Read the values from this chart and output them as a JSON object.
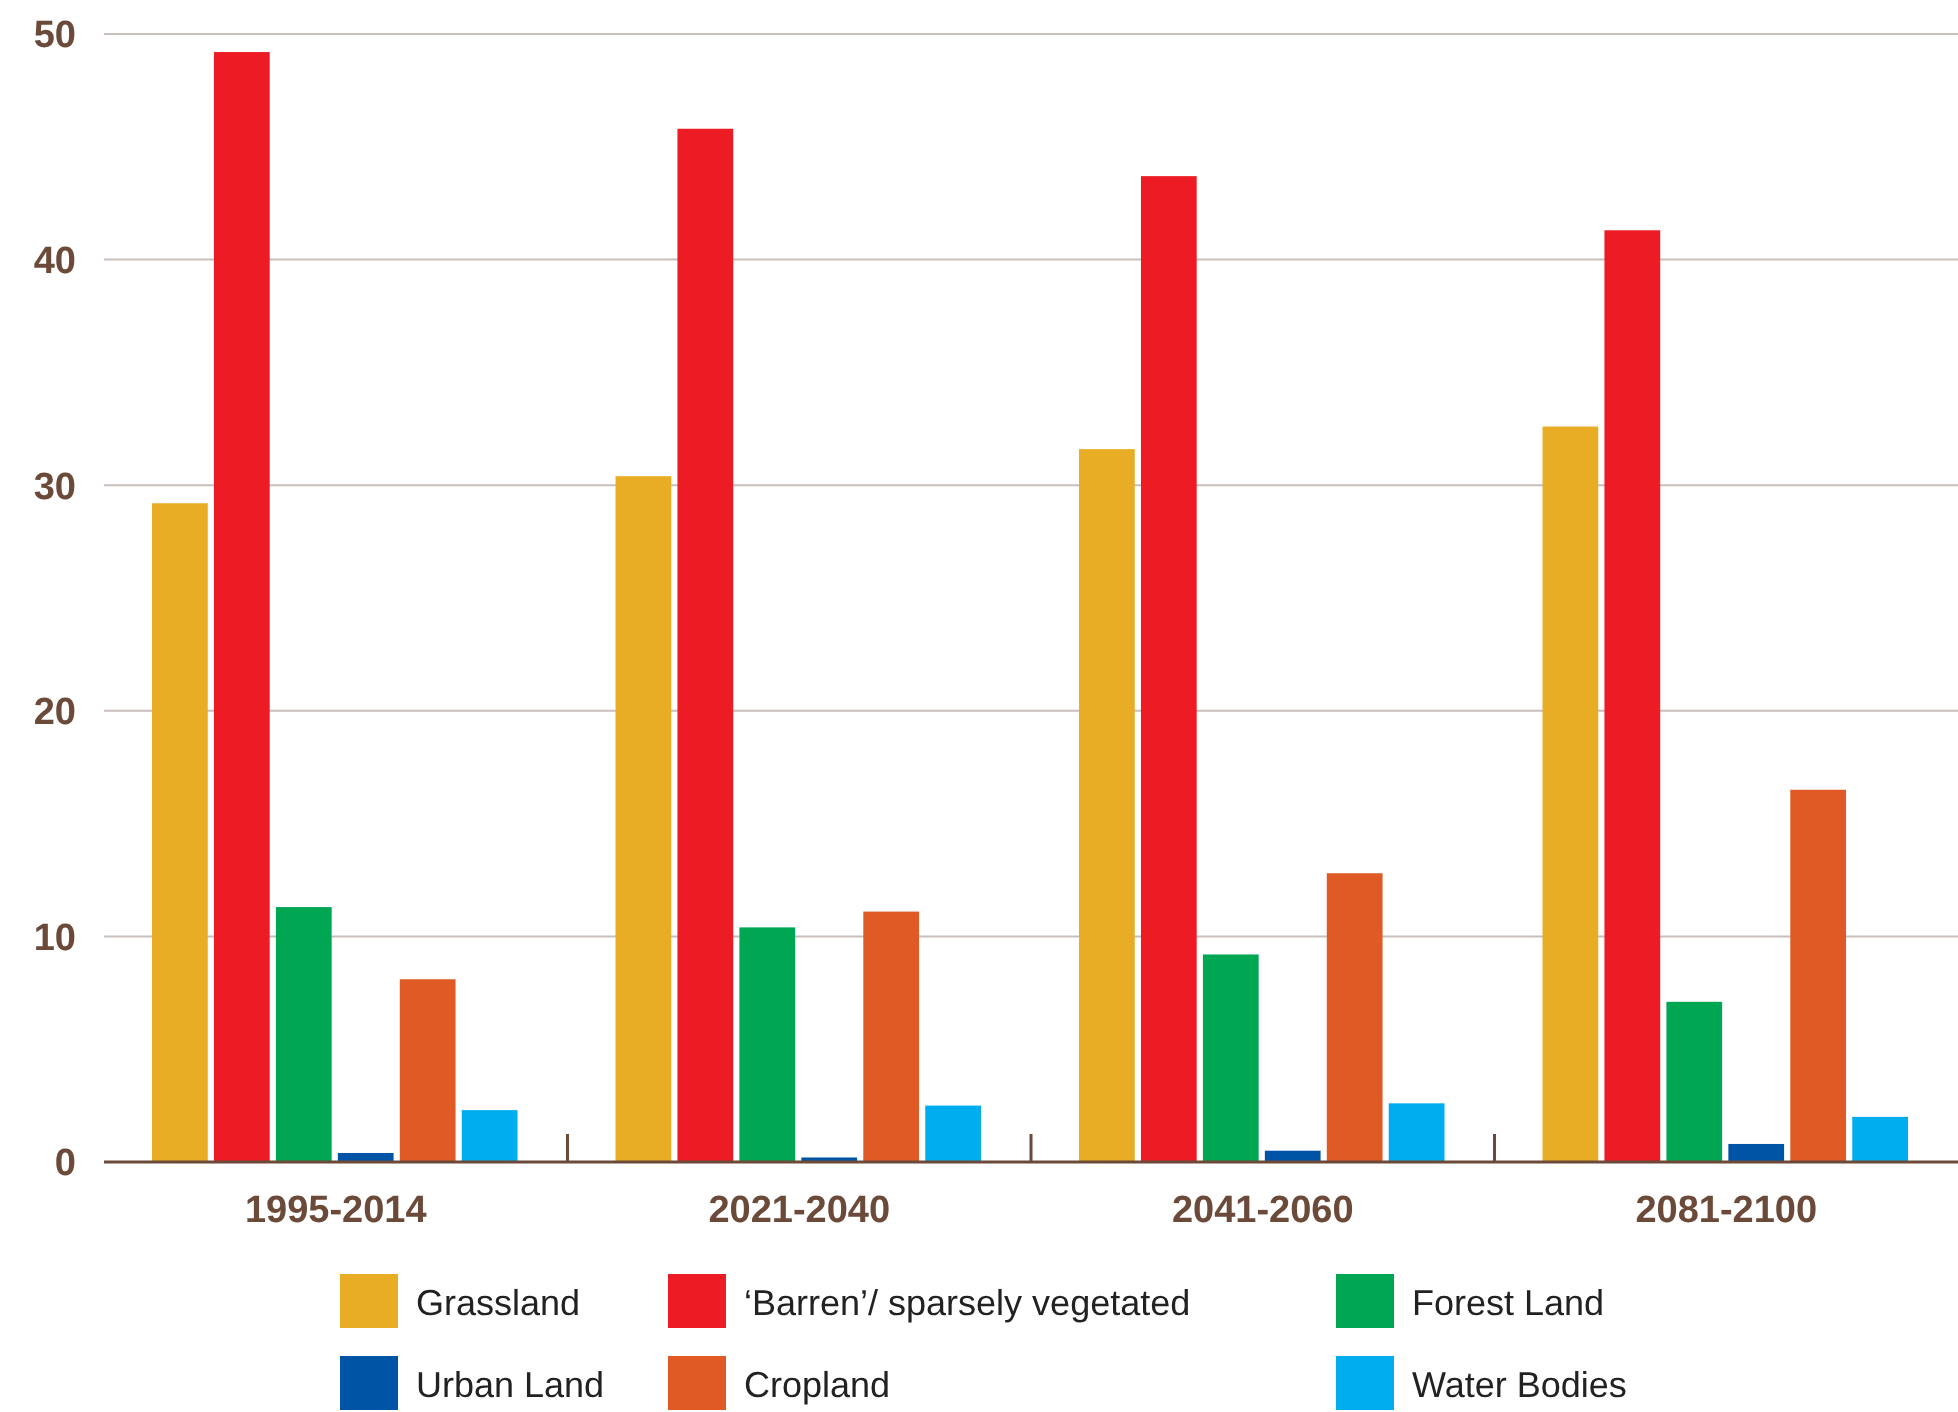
{
  "chart_data": {
    "type": "bar",
    "categories": [
      "1995-2014",
      "2021-2040",
      "2041-2060",
      "2081-2100"
    ],
    "series": [
      {
        "name": "Grassland",
        "color": "#e8ad25",
        "values": [
          29.2,
          30.4,
          31.6,
          32.6
        ]
      },
      {
        "name": "‘Barren’/ sparsely vegetated",
        "color": "#ed1c24",
        "values": [
          49.2,
          45.8,
          43.7,
          41.3
        ]
      },
      {
        "name": "Forest Land",
        "color": "#00a651",
        "values": [
          11.3,
          10.4,
          9.2,
          7.1
        ]
      },
      {
        "name": "Urban Land",
        "color": "#0054a6",
        "values": [
          0.4,
          0.2,
          0.5,
          0.8
        ]
      },
      {
        "name": "Cropland",
        "color": "#e05a26",
        "values": [
          8.1,
          11.1,
          12.8,
          16.5
        ]
      },
      {
        "name": "Water Bodies",
        "color": "#00aeef",
        "values": [
          2.3,
          2.5,
          2.6,
          2.0
        ]
      }
    ],
    "ylim": [
      0,
      50
    ],
    "yticks": [
      0,
      10,
      20,
      30,
      40,
      50
    ],
    "grid": "y",
    "legend": "bottom"
  }
}
